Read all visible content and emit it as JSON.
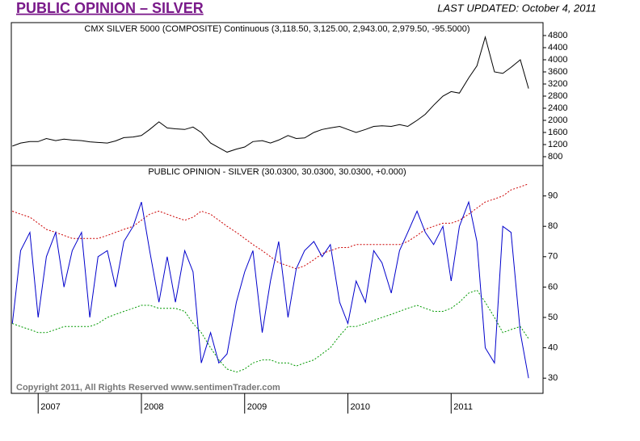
{
  "header": {
    "title": "PUBLIC OPINION – SILVER",
    "updated": "LAST UPDATED:  October 4, 2011"
  },
  "chart_data": [
    {
      "type": "line",
      "title": "CMX SILVER 5000 (COMPOSITE) Continuous (3,118.50, 3,125.00, 2,943.00, 2,979.50, -95.5000)",
      "x": [
        2006.75,
        2006.83,
        2006.92,
        2007.0,
        2007.08,
        2007.17,
        2007.25,
        2007.33,
        2007.42,
        2007.5,
        2007.58,
        2007.67,
        2007.75,
        2007.83,
        2007.92,
        2008.0,
        2008.08,
        2008.17,
        2008.25,
        2008.33,
        2008.42,
        2008.5,
        2008.58,
        2008.67,
        2008.75,
        2008.83,
        2008.92,
        2009.0,
        2009.08,
        2009.17,
        2009.25,
        2009.33,
        2009.42,
        2009.5,
        2009.58,
        2009.67,
        2009.75,
        2009.83,
        2009.92,
        2010.0,
        2010.08,
        2010.17,
        2010.25,
        2010.33,
        2010.42,
        2010.5,
        2010.58,
        2010.67,
        2010.75,
        2010.83,
        2010.92,
        2011.0,
        2011.08,
        2011.17,
        2011.25,
        2011.33,
        2011.42,
        2011.5,
        2011.58,
        2011.67,
        2011.75
      ],
      "series": [
        {
          "color": "#000000",
          "values": [
            1150,
            1250,
            1300,
            1300,
            1400,
            1330,
            1380,
            1350,
            1330,
            1290,
            1270,
            1250,
            1320,
            1430,
            1450,
            1500,
            1700,
            1950,
            1750,
            1720,
            1700,
            1780,
            1600,
            1250,
            1100,
            950,
            1050,
            1120,
            1300,
            1330,
            1250,
            1350,
            1500,
            1400,
            1420,
            1600,
            1700,
            1750,
            1800,
            1700,
            1600,
            1700,
            1800,
            1820,
            1800,
            1860,
            1800,
            2000,
            2200,
            2500,
            2800,
            2950,
            2900,
            3400,
            3800,
            4750,
            3600,
            3550,
            3750,
            4000,
            3050
          ]
        }
      ],
      "xlim": [
        2006.74,
        2011.89
      ],
      "ylim": [
        507,
        5227
      ],
      "yticks": [
        800,
        1200,
        1600,
        2000,
        2400,
        2800,
        3200,
        3600,
        4000,
        4400,
        4800
      ]
    },
    {
      "type": "line",
      "title": "PUBLIC OPINION - SILVER (30.0300, 30.0300, 30.0300, +0.000)",
      "x": [
        2006.75,
        2006.83,
        2006.92,
        2007.0,
        2007.08,
        2007.17,
        2007.25,
        2007.33,
        2007.42,
        2007.5,
        2007.58,
        2007.67,
        2007.75,
        2007.83,
        2007.92,
        2008.0,
        2008.08,
        2008.17,
        2008.25,
        2008.33,
        2008.42,
        2008.5,
        2008.58,
        2008.67,
        2008.75,
        2008.83,
        2008.92,
        2009.0,
        2009.08,
        2009.17,
        2009.25,
        2009.33,
        2009.42,
        2009.5,
        2009.58,
        2009.67,
        2009.75,
        2009.83,
        2009.92,
        2010.0,
        2010.08,
        2010.17,
        2010.25,
        2010.33,
        2010.42,
        2010.5,
        2010.58,
        2010.67,
        2010.75,
        2010.83,
        2010.92,
        2011.0,
        2011.08,
        2011.17,
        2011.25,
        2011.33,
        2011.42,
        2011.5,
        2011.58,
        2011.67,
        2011.75
      ],
      "series": [
        {
          "color": "#cc0000",
          "dashed": true,
          "values": [
            85,
            84,
            83,
            81,
            79,
            78,
            77,
            76,
            76,
            76,
            76,
            77,
            78,
            79,
            80,
            82,
            84,
            85,
            84,
            83,
            82,
            83,
            85,
            84,
            82,
            80,
            78,
            76,
            74,
            72,
            70,
            68,
            67,
            66,
            67,
            69,
            71,
            72,
            73,
            73,
            74,
            74,
            74,
            74,
            74,
            74,
            75,
            77,
            79,
            80,
            81,
            81,
            82,
            84,
            86,
            88,
            89,
            90,
            92,
            93,
            94
          ]
        },
        {
          "color": "#009900",
          "dashed": true,
          "values": [
            48,
            47,
            46,
            45,
            45,
            46,
            47,
            47,
            47,
            47,
            48,
            50,
            51,
            52,
            53,
            54,
            54,
            53,
            53,
            53,
            52,
            48,
            45,
            40,
            36,
            33,
            32,
            33,
            35,
            36,
            36,
            35,
            35,
            34,
            35,
            36,
            38,
            40,
            44,
            47,
            47,
            48,
            49,
            50,
            51,
            52,
            53,
            54,
            53,
            52,
            52,
            53,
            55,
            58,
            59,
            55,
            50,
            45,
            46,
            47,
            43
          ]
        },
        {
          "color": "#0000cc",
          "values": [
            48,
            72,
            78,
            50,
            70,
            78,
            60,
            72,
            78,
            50,
            70,
            72,
            60,
            75,
            80,
            88,
            72,
            55,
            70,
            55,
            72,
            65,
            35,
            45,
            35,
            38,
            55,
            65,
            72,
            45,
            62,
            75,
            50,
            66,
            72,
            75,
            70,
            74,
            55,
            48,
            62,
            55,
            72,
            68,
            58,
            72,
            78,
            85,
            78,
            74,
            80,
            62,
            80,
            88,
            75,
            40,
            35,
            80,
            78,
            45,
            30
          ]
        }
      ],
      "xlim": [
        2006.74,
        2011.89
      ],
      "ylim": [
        25,
        100
      ],
      "yticks": [
        30,
        40,
        50,
        60,
        70,
        80,
        90
      ],
      "xticks": [
        2007,
        2008,
        2009,
        2010,
        2011
      ]
    }
  ],
  "footer": {
    "copyright": "Copyright 2011, All Rights Reserved  www.sentimenTrader.com"
  }
}
